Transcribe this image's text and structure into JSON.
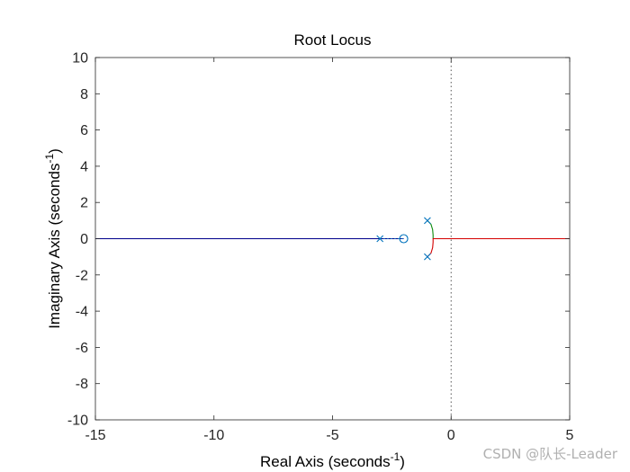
{
  "chart_data": {
    "type": "line",
    "title": "Root Locus",
    "xlabel": {
      "text": "Real Axis (seconds",
      "sup": "-1",
      "suffix": ")"
    },
    "ylabel": {
      "text": "Imaginary Axis (seconds",
      "sup": "-1",
      "suffix": ")"
    },
    "xlim": [
      -15,
      5
    ],
    "ylim": [
      -10,
      10
    ],
    "xticks": [
      -15,
      -10,
      -5,
      0,
      5
    ],
    "yticks": [
      -10,
      -8,
      -6,
      -4,
      -2,
      0,
      2,
      4,
      6,
      8,
      10
    ],
    "xtick_labels": [
      "-15",
      "-10",
      "-5",
      "0",
      "5"
    ],
    "ytick_labels": [
      "-10",
      "-8",
      "-6",
      "-4",
      "-2",
      "0",
      "2",
      "4",
      "6",
      "8",
      "10"
    ],
    "grid": false,
    "zero_line": {
      "x": 0,
      "style": "dotted"
    },
    "poles": [
      {
        "x": -3,
        "y": 0,
        "color": "#0072bd"
      },
      {
        "x": -1,
        "y": 1,
        "color": "#0072bd"
      },
      {
        "x": -1,
        "y": -1,
        "color": "#0072bd"
      }
    ],
    "zeros": [
      {
        "x": -2,
        "y": 0,
        "color": "#0072bd"
      }
    ],
    "series": [
      {
        "color": "#00008b",
        "style": "solid",
        "points": [
          [
            -15,
            0
          ],
          [
            -2,
            0
          ]
        ]
      },
      {
        "color": "#0072bd",
        "style": "dotted",
        "points": [
          [
            -3,
            0
          ],
          [
            -2,
            0
          ]
        ]
      },
      {
        "color": "#0a8a0a",
        "style": "solid",
        "points": [
          [
            -1,
            1
          ],
          [
            -0.85,
            0.8
          ],
          [
            -0.78,
            0.5
          ],
          [
            -0.76,
            0.2
          ],
          [
            -0.76,
            0
          ]
        ]
      },
      {
        "color": "#d40000",
        "style": "solid",
        "points": [
          [
            -1,
            -1
          ],
          [
            -0.85,
            -0.8
          ],
          [
            -0.78,
            -0.5
          ],
          [
            -0.76,
            -0.2
          ],
          [
            -0.76,
            0
          ],
          [
            5,
            0
          ]
        ]
      }
    ]
  },
  "watermark": "CSDN @队长-Leader"
}
